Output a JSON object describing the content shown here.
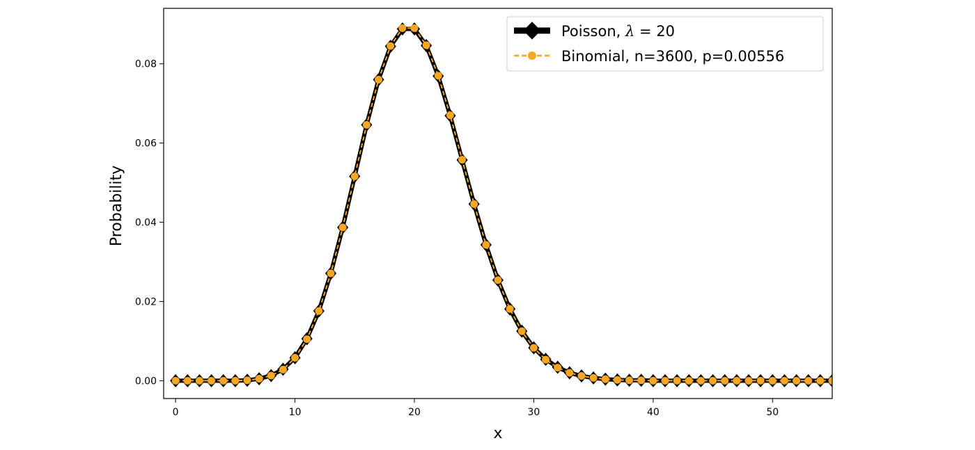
{
  "chart_data": {
    "type": "line",
    "title": "",
    "xlabel": "x",
    "ylabel": "Probability",
    "xlim": [
      -1,
      55
    ],
    "ylim": [
      -0.0045,
      0.094
    ],
    "xticks": [
      0,
      10,
      20,
      30,
      40,
      50
    ],
    "yticks": [
      0.0,
      0.02,
      0.04,
      0.06,
      0.08
    ],
    "ytick_labels": [
      "0.00",
      "0.02",
      "0.04",
      "0.06",
      "0.08"
    ],
    "grid": false,
    "legend": "top-right",
    "x": [
      0,
      1,
      2,
      3,
      4,
      5,
      6,
      7,
      8,
      9,
      10,
      11,
      12,
      13,
      14,
      15,
      16,
      17,
      18,
      19,
      20,
      21,
      22,
      23,
      24,
      25,
      26,
      27,
      28,
      29,
      30,
      31,
      32,
      33,
      34,
      35,
      36,
      37,
      38,
      39,
      40,
      41,
      42,
      43,
      44,
      45,
      46,
      47,
      48,
      49,
      50,
      51,
      52,
      53,
      54,
      55
    ],
    "series": [
      {
        "name": "Poisson, λ = 20",
        "color": "#000000",
        "style": "solid",
        "marker": "diamond",
        "values": [
          0.0,
          0.0,
          0.0,
          0.0,
          0.0,
          0.0,
          0.0001,
          0.0005,
          0.0013,
          0.0029,
          0.0058,
          0.0106,
          0.0176,
          0.0271,
          0.0387,
          0.0516,
          0.0646,
          0.076,
          0.0844,
          0.0888,
          0.0888,
          0.0846,
          0.0769,
          0.0669,
          0.0557,
          0.0446,
          0.0343,
          0.0254,
          0.0181,
          0.0125,
          0.0083,
          0.0054,
          0.0034,
          0.002,
          0.0012,
          0.0007,
          0.0004,
          0.0002,
          0.0001,
          0.0001,
          0.0,
          0.0,
          0.0,
          0.0,
          0.0,
          0.0,
          0.0,
          0.0,
          0.0,
          0.0,
          0.0,
          0.0,
          0.0,
          0.0,
          0.0,
          0.0
        ]
      },
      {
        "name": "Binomial, n=3600, p=0.00556",
        "color": "#f5a623",
        "style": "dashed",
        "marker": "circle",
        "values": [
          0.0,
          0.0,
          0.0,
          0.0,
          0.0,
          0.0,
          0.0001,
          0.0005,
          0.0013,
          0.0028,
          0.0058,
          0.0105,
          0.0176,
          0.0271,
          0.0387,
          0.0516,
          0.0646,
          0.076,
          0.0845,
          0.089,
          0.089,
          0.0847,
          0.077,
          0.067,
          0.0558,
          0.0446,
          0.0343,
          0.0254,
          0.0181,
          0.0125,
          0.0083,
          0.0053,
          0.0033,
          0.002,
          0.0012,
          0.0007,
          0.0004,
          0.0002,
          0.0001,
          0.0001,
          0.0,
          0.0,
          0.0,
          0.0,
          0.0,
          0.0,
          0.0,
          0.0,
          0.0,
          0.0,
          0.0,
          0.0,
          0.0,
          0.0,
          0.0,
          0.0
        ]
      }
    ]
  },
  "legend": {
    "items": [
      {
        "prefix": "Poisson, ",
        "symbol": "λ",
        "suffix": " = 20"
      },
      {
        "label": "Binomial, n=3600, p=0.00556"
      }
    ]
  }
}
